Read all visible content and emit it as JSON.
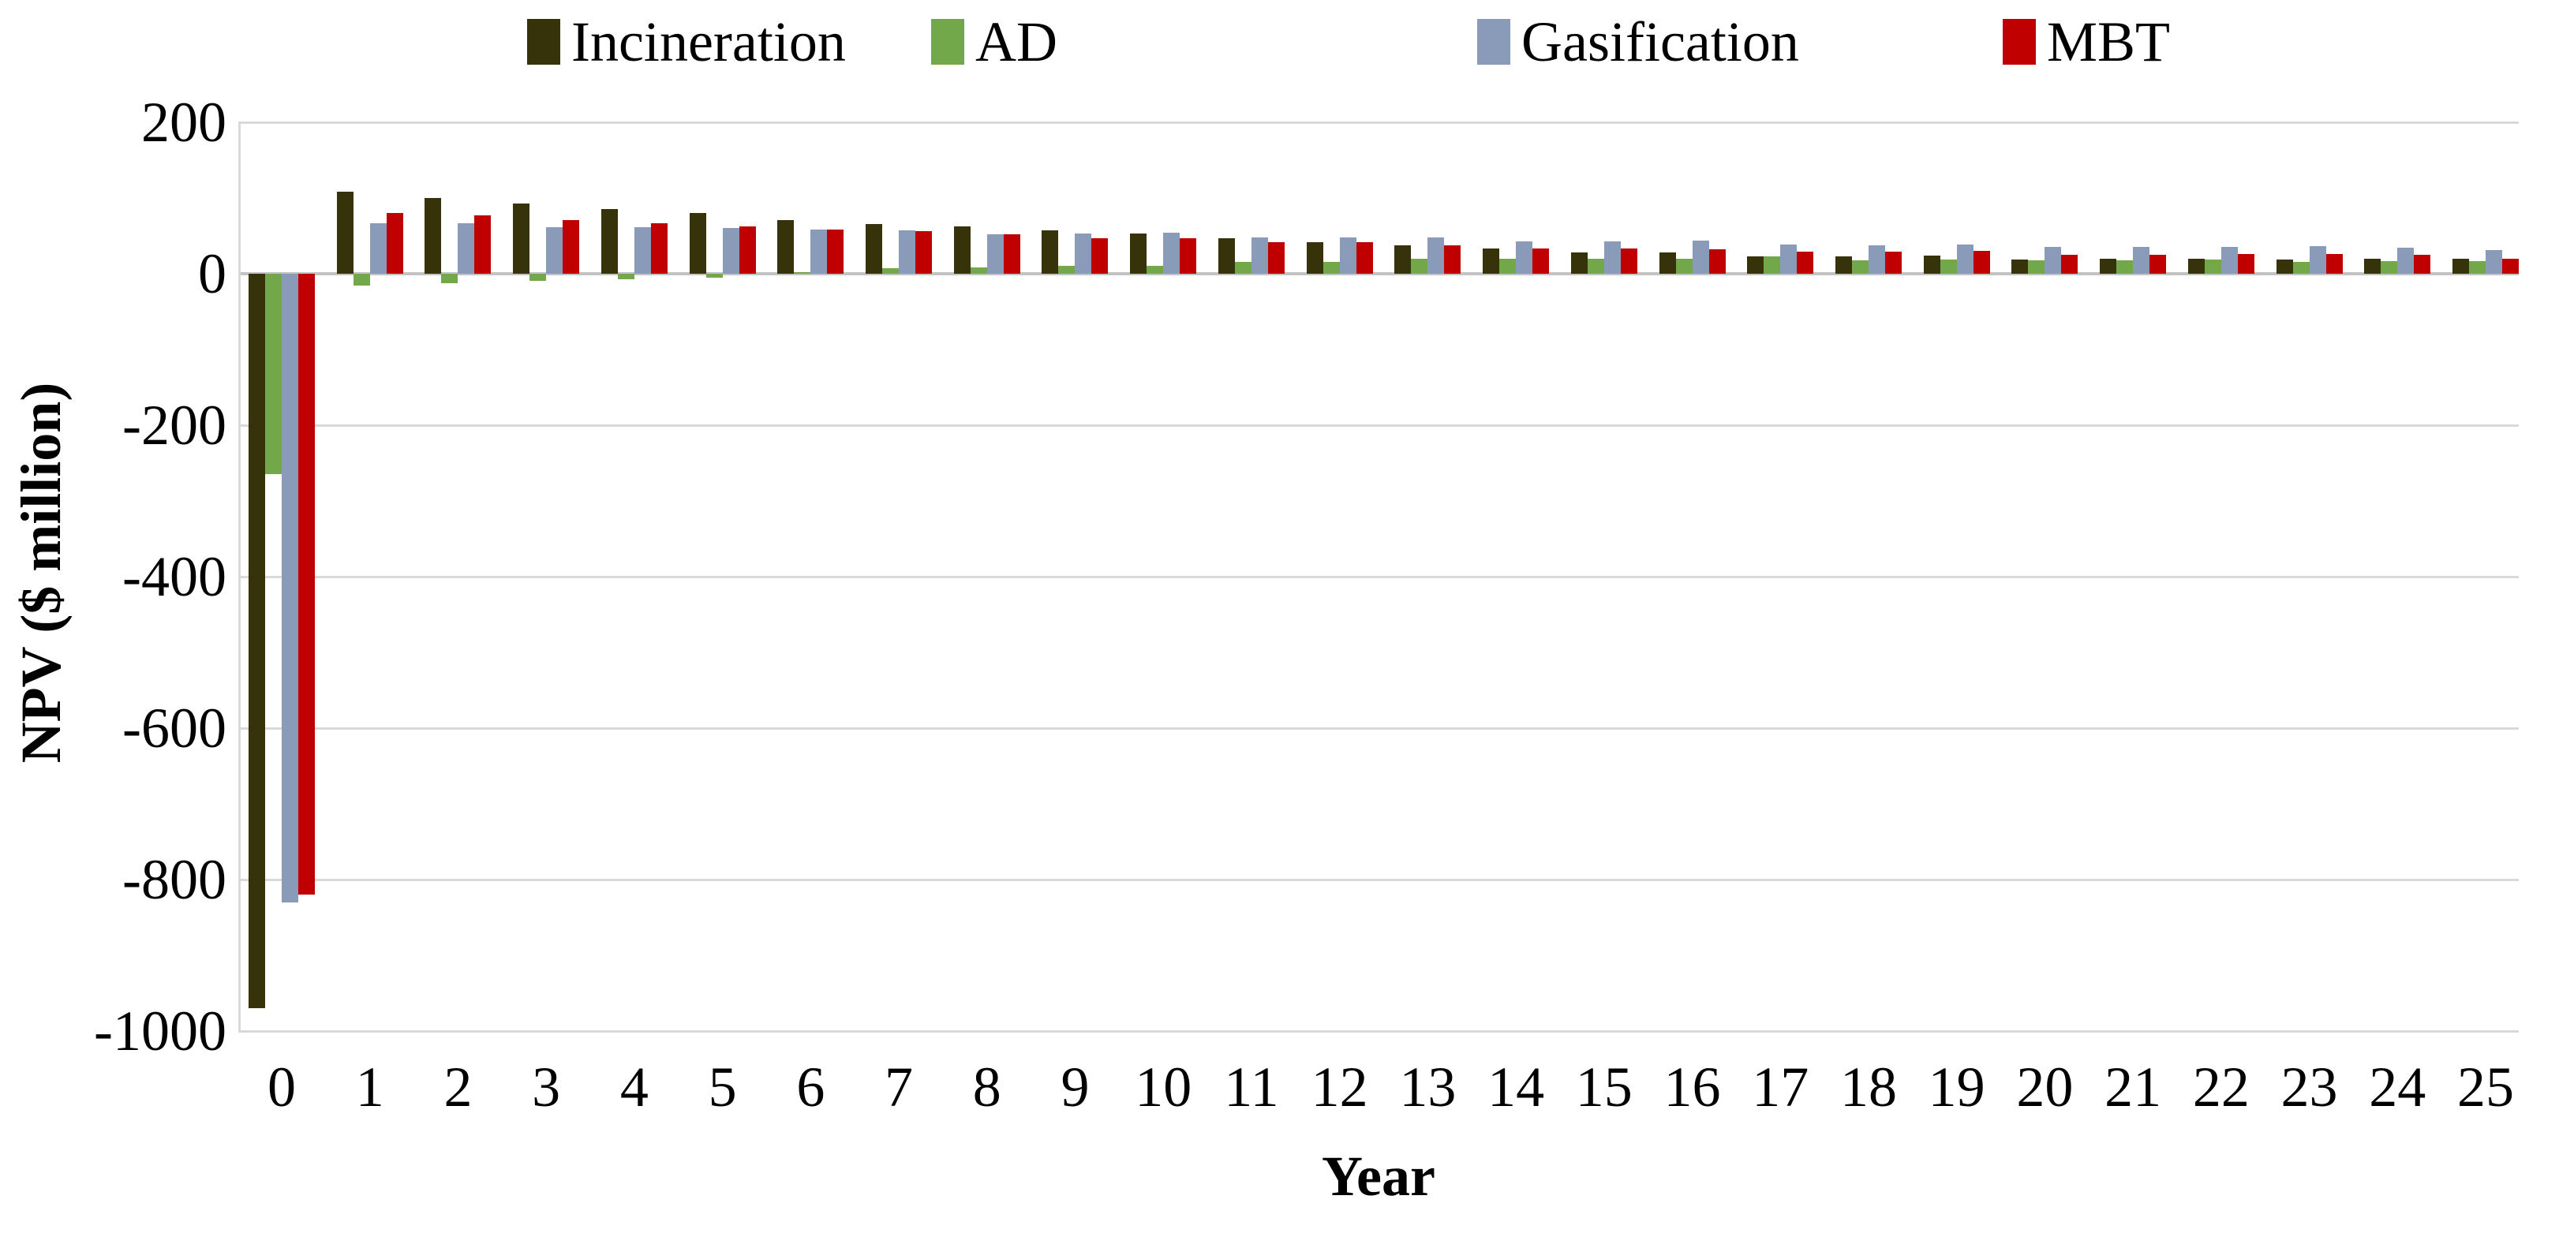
{
  "figure": {
    "background": "#ffffff",
    "text_color": "#000000",
    "gridline_color": "#d9d9d9",
    "zero_line_color": "#c3c3c3"
  },
  "chart_data": {
    "type": "bar",
    "title": "",
    "xlabel": "Year",
    "ylabel": "NPV ($ million)",
    "x": [
      0,
      1,
      2,
      3,
      4,
      5,
      6,
      7,
      8,
      9,
      10,
      11,
      12,
      13,
      14,
      15,
      16,
      17,
      18,
      19,
      20,
      21,
      22,
      23,
      24,
      25
    ],
    "series": [
      {
        "name": "Incineration",
        "color": "#363209",
        "values": [
          -970,
          108,
          100,
          93,
          85,
          80,
          71,
          66,
          62,
          57,
          53,
          47,
          42,
          38,
          33,
          28,
          28,
          23,
          23,
          24,
          19,
          20,
          20,
          19,
          20,
          20
        ]
      },
      {
        "name": "AD",
        "color": "#72a84a",
        "values": [
          -265,
          -16,
          -12,
          -9,
          -7,
          -5,
          2,
          7,
          8,
          10,
          10,
          16,
          16,
          20,
          20,
          20,
          20,
          23,
          18,
          19,
          18,
          18,
          19,
          16,
          17,
          17
        ]
      },
      {
        "name": "Gasification",
        "color": "#8a9bb9",
        "values": [
          -830,
          67,
          67,
          61,
          61,
          60,
          58,
          57,
          52,
          53,
          54,
          48,
          48,
          48,
          43,
          43,
          44,
          39,
          38,
          39,
          35,
          35,
          35,
          36,
          34,
          31
        ]
      },
      {
        "name": "MBT",
        "color": "#c00000",
        "values": [
          -820,
          80,
          77,
          71,
          67,
          62,
          58,
          56,
          52,
          47,
          47,
          42,
          42,
          38,
          33,
          33,
          32,
          29,
          29,
          30,
          25,
          25,
          26,
          26,
          25,
          20
        ]
      }
    ],
    "ylim": [
      -1000,
      200
    ],
    "yticks": [
      200,
      0,
      -200,
      -400,
      -600,
      -800,
      -1000
    ],
    "grid": true,
    "legend_position": "top",
    "legend_x_positions": [
      668,
      1180,
      1872,
      2538
    ]
  }
}
